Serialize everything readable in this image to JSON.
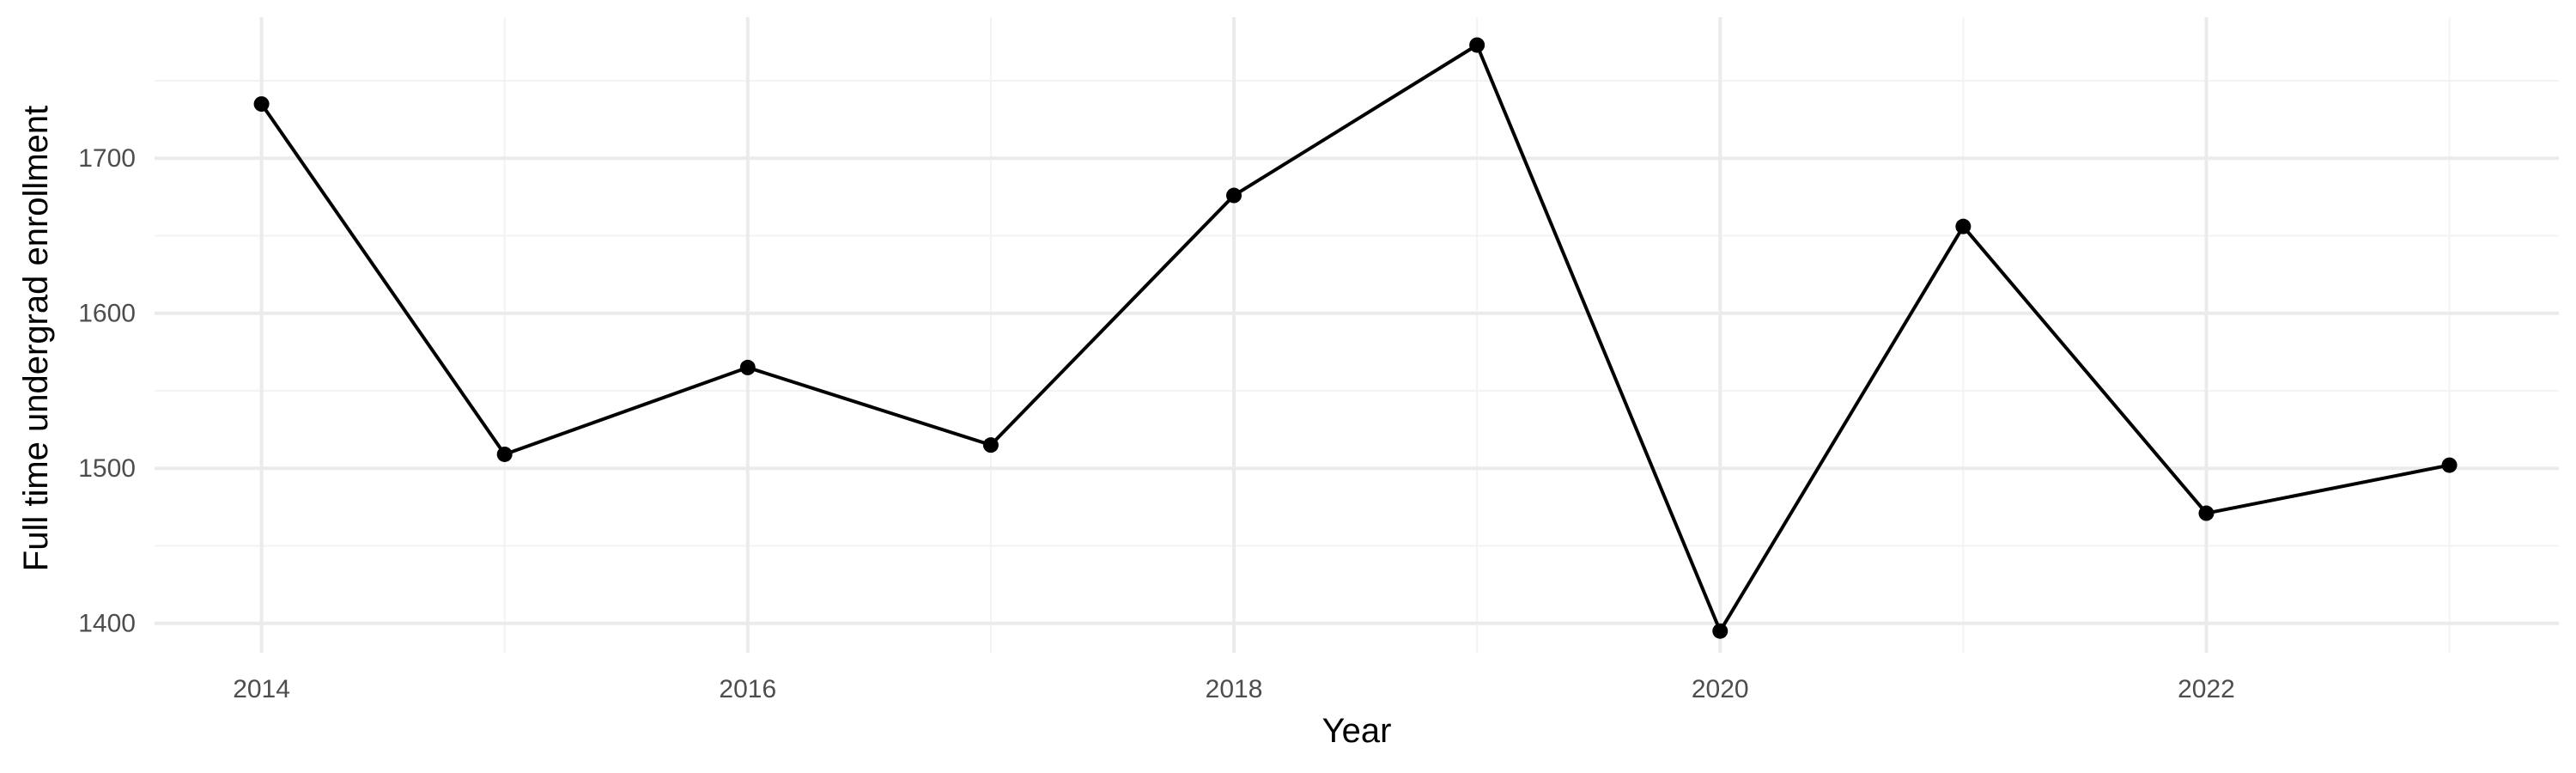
{
  "chart_data": {
    "type": "line",
    "title": "",
    "xlabel": "Year",
    "ylabel": "Full time undergrad enrollment",
    "x": [
      2014,
      2015,
      2016,
      2017,
      2018,
      2019,
      2020,
      2021,
      2022,
      2023
    ],
    "series": [
      {
        "values": [
          1735,
          1509,
          1565,
          1515,
          1676,
          1773,
          1395,
          1656,
          1471,
          1502
        ]
      }
    ],
    "xlim": [
      2013.56,
      2023.45
    ],
    "ylim": [
      1381,
      1791
    ],
    "x_ticks": [
      2014,
      2016,
      2018,
      2020,
      2022
    ],
    "x_minor_ticks": [
      2015,
      2017,
      2019,
      2021,
      2023
    ],
    "y_ticks": [
      1400,
      1500,
      1600,
      1700
    ],
    "y_minor_ticks": [
      1450,
      1550,
      1650,
      1750
    ],
    "x_tick_labels": [
      "2014",
      "2016",
      "2018",
      "2020",
      "2022"
    ],
    "y_tick_labels": [
      "1400",
      "1500",
      "1600",
      "1700"
    ],
    "grid": true,
    "legend": "none",
    "line_color": "#000000",
    "point_color": "#000000",
    "grid_major_color": "#ebebeb",
    "grid_minor_color": "#f3f3f3"
  }
}
